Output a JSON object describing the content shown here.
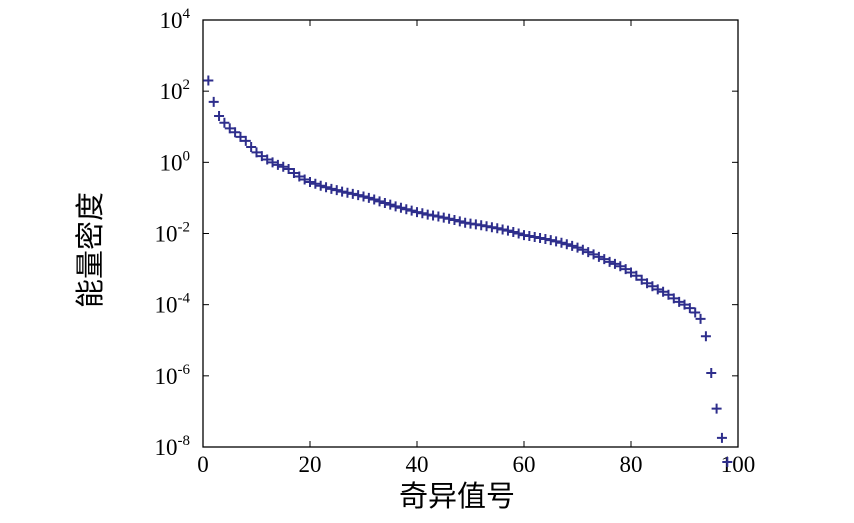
{
  "chart_data": {
    "type": "scatter",
    "title": "",
    "xlabel": "奇异值号",
    "ylabel": "能量密度",
    "xlim": [
      0,
      100
    ],
    "ylim": [
      1e-08,
      10000
    ],
    "yscale": "log",
    "grid": false,
    "legend": "none",
    "marker": "+",
    "marker_color": "#2e2e8c",
    "x_ticks": [
      {
        "value": 0,
        "label": "0"
      },
      {
        "value": 20,
        "label": "20"
      },
      {
        "value": 40,
        "label": "40"
      },
      {
        "value": 60,
        "label": "60"
      },
      {
        "value": 80,
        "label": "80"
      },
      {
        "value": 100,
        "label": "100"
      }
    ],
    "y_ticks": [
      {
        "value": 1e-08,
        "base": "10",
        "exp": "-8"
      },
      {
        "value": 1e-06,
        "base": "10",
        "exp": "-6"
      },
      {
        "value": 0.0001,
        "base": "10",
        "exp": "-4"
      },
      {
        "value": 0.01,
        "base": "10",
        "exp": "-2"
      },
      {
        "value": 1,
        "base": "10",
        "exp": "0"
      },
      {
        "value": 100,
        "base": "10",
        "exp": "2"
      },
      {
        "value": 10000,
        "base": "10",
        "exp": "4"
      }
    ],
    "series": [
      {
        "x": [
          1,
          2,
          3,
          4,
          5,
          6,
          7,
          8,
          9,
          10,
          11,
          12,
          13,
          14,
          15,
          16,
          17,
          18,
          19,
          20,
          21,
          22,
          23,
          24,
          25,
          26,
          27,
          28,
          29,
          30,
          31,
          32,
          33,
          34,
          35,
          36,
          37,
          38,
          39,
          40,
          41,
          42,
          43,
          44,
          45,
          46,
          47,
          48,
          49,
          50,
          51,
          52,
          53,
          54,
          55,
          56,
          57,
          58,
          59,
          60,
          61,
          62,
          63,
          64,
          65,
          66,
          67,
          68,
          69,
          70,
          71,
          72,
          73,
          74,
          75,
          76,
          77,
          78,
          79,
          80,
          81,
          82,
          83,
          84,
          85,
          86,
          87,
          88,
          89,
          90,
          91,
          92,
          93,
          94,
          95,
          96,
          97,
          98
        ],
        "y": [
          200,
          50,
          20,
          13,
          9,
          7,
          5.2,
          4,
          2.7,
          1.9,
          1.5,
          1.2,
          1.0,
          0.85,
          0.75,
          0.65,
          0.5,
          0.4,
          0.33,
          0.28,
          0.25,
          0.22,
          0.2,
          0.18,
          0.165,
          0.15,
          0.14,
          0.13,
          0.12,
          0.11,
          0.1,
          0.09,
          0.08,
          0.072,
          0.065,
          0.058,
          0.053,
          0.048,
          0.044,
          0.04,
          0.037,
          0.034,
          0.032,
          0.03,
          0.028,
          0.026,
          0.024,
          0.022,
          0.02,
          0.019,
          0.018,
          0.017,
          0.016,
          0.015,
          0.014,
          0.013,
          0.012,
          0.011,
          0.01,
          0.009,
          0.0085,
          0.008,
          0.0075,
          0.007,
          0.0065,
          0.006,
          0.0055,
          0.005,
          0.0045,
          0.004,
          0.0035,
          0.003,
          0.0026,
          0.0022,
          0.0019,
          0.0016,
          0.0014,
          0.0012,
          0.001,
          0.0008,
          0.00065,
          0.0005,
          0.0004,
          0.00033,
          0.00027,
          0.00023,
          0.00019,
          0.00015,
          0.00012,
          0.0001,
          8e-05,
          6e-05,
          4e-05,
          1.3e-05,
          1.2e-06,
          1.2e-07,
          1.8e-08,
          3.8e-09
        ]
      }
    ]
  }
}
